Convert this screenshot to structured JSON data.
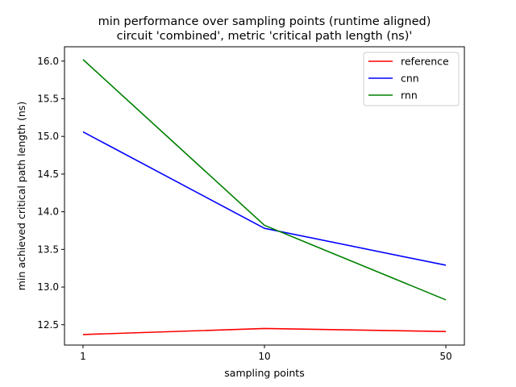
{
  "chart_data": {
    "type": "line",
    "title": "min performance over sampling points (runtime aligned)",
    "subtitle": "circuit 'combined', metric 'critical path length (ns)'",
    "xlabel": "sampling points",
    "ylabel": "min achieved critical path length (ns)",
    "categories": [
      "1",
      "10",
      "50"
    ],
    "ylim": [
      12.23,
      16.19
    ],
    "yticks": [
      12.5,
      13.0,
      13.5,
      14.0,
      14.5,
      15.0,
      15.5,
      16.0
    ],
    "ytick_labels": [
      "12.5",
      "13.0",
      "13.5",
      "14.0",
      "14.5",
      "15.0",
      "15.5",
      "16.0"
    ],
    "grid": false,
    "legend_position": "top-right",
    "series": [
      {
        "name": "reference",
        "color": "#ff0000",
        "values": [
          12.37,
          12.45,
          12.41
        ]
      },
      {
        "name": "cnn",
        "color": "#0000ff",
        "values": [
          15.06,
          13.78,
          13.29
        ]
      },
      {
        "name": "rnn",
        "color": "#008000",
        "values": [
          16.02,
          13.82,
          12.83
        ]
      }
    ]
  }
}
